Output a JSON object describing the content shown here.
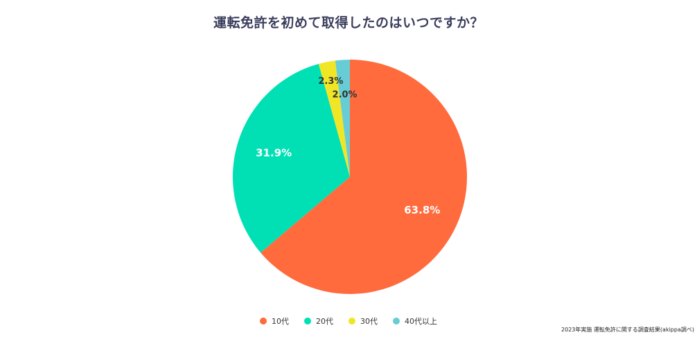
{
  "chart_data": {
    "type": "pie",
    "title": "運転免許を初めて取得したのはいつですか？",
    "categories": [
      "10代",
      "20代",
      "30代",
      "40代以上"
    ],
    "values": [
      63.8,
      31.9,
      2.3,
      2.0
    ],
    "labels": [
      "63.8%",
      "31.9%",
      "2.3%",
      "2.0%"
    ],
    "colors": [
      "#ff6b3d",
      "#00e0b4",
      "#f0e626",
      "#66cdd6"
    ],
    "label_colors": [
      "#ffffff",
      "#ffffff",
      "#333333",
      "#333333"
    ],
    "legend_position": "bottom",
    "start_angle": "12 o'clock",
    "direction": "clockwise"
  },
  "source_note": "2023年実施 運転免許に関する調査結果(akippa調べ)"
}
